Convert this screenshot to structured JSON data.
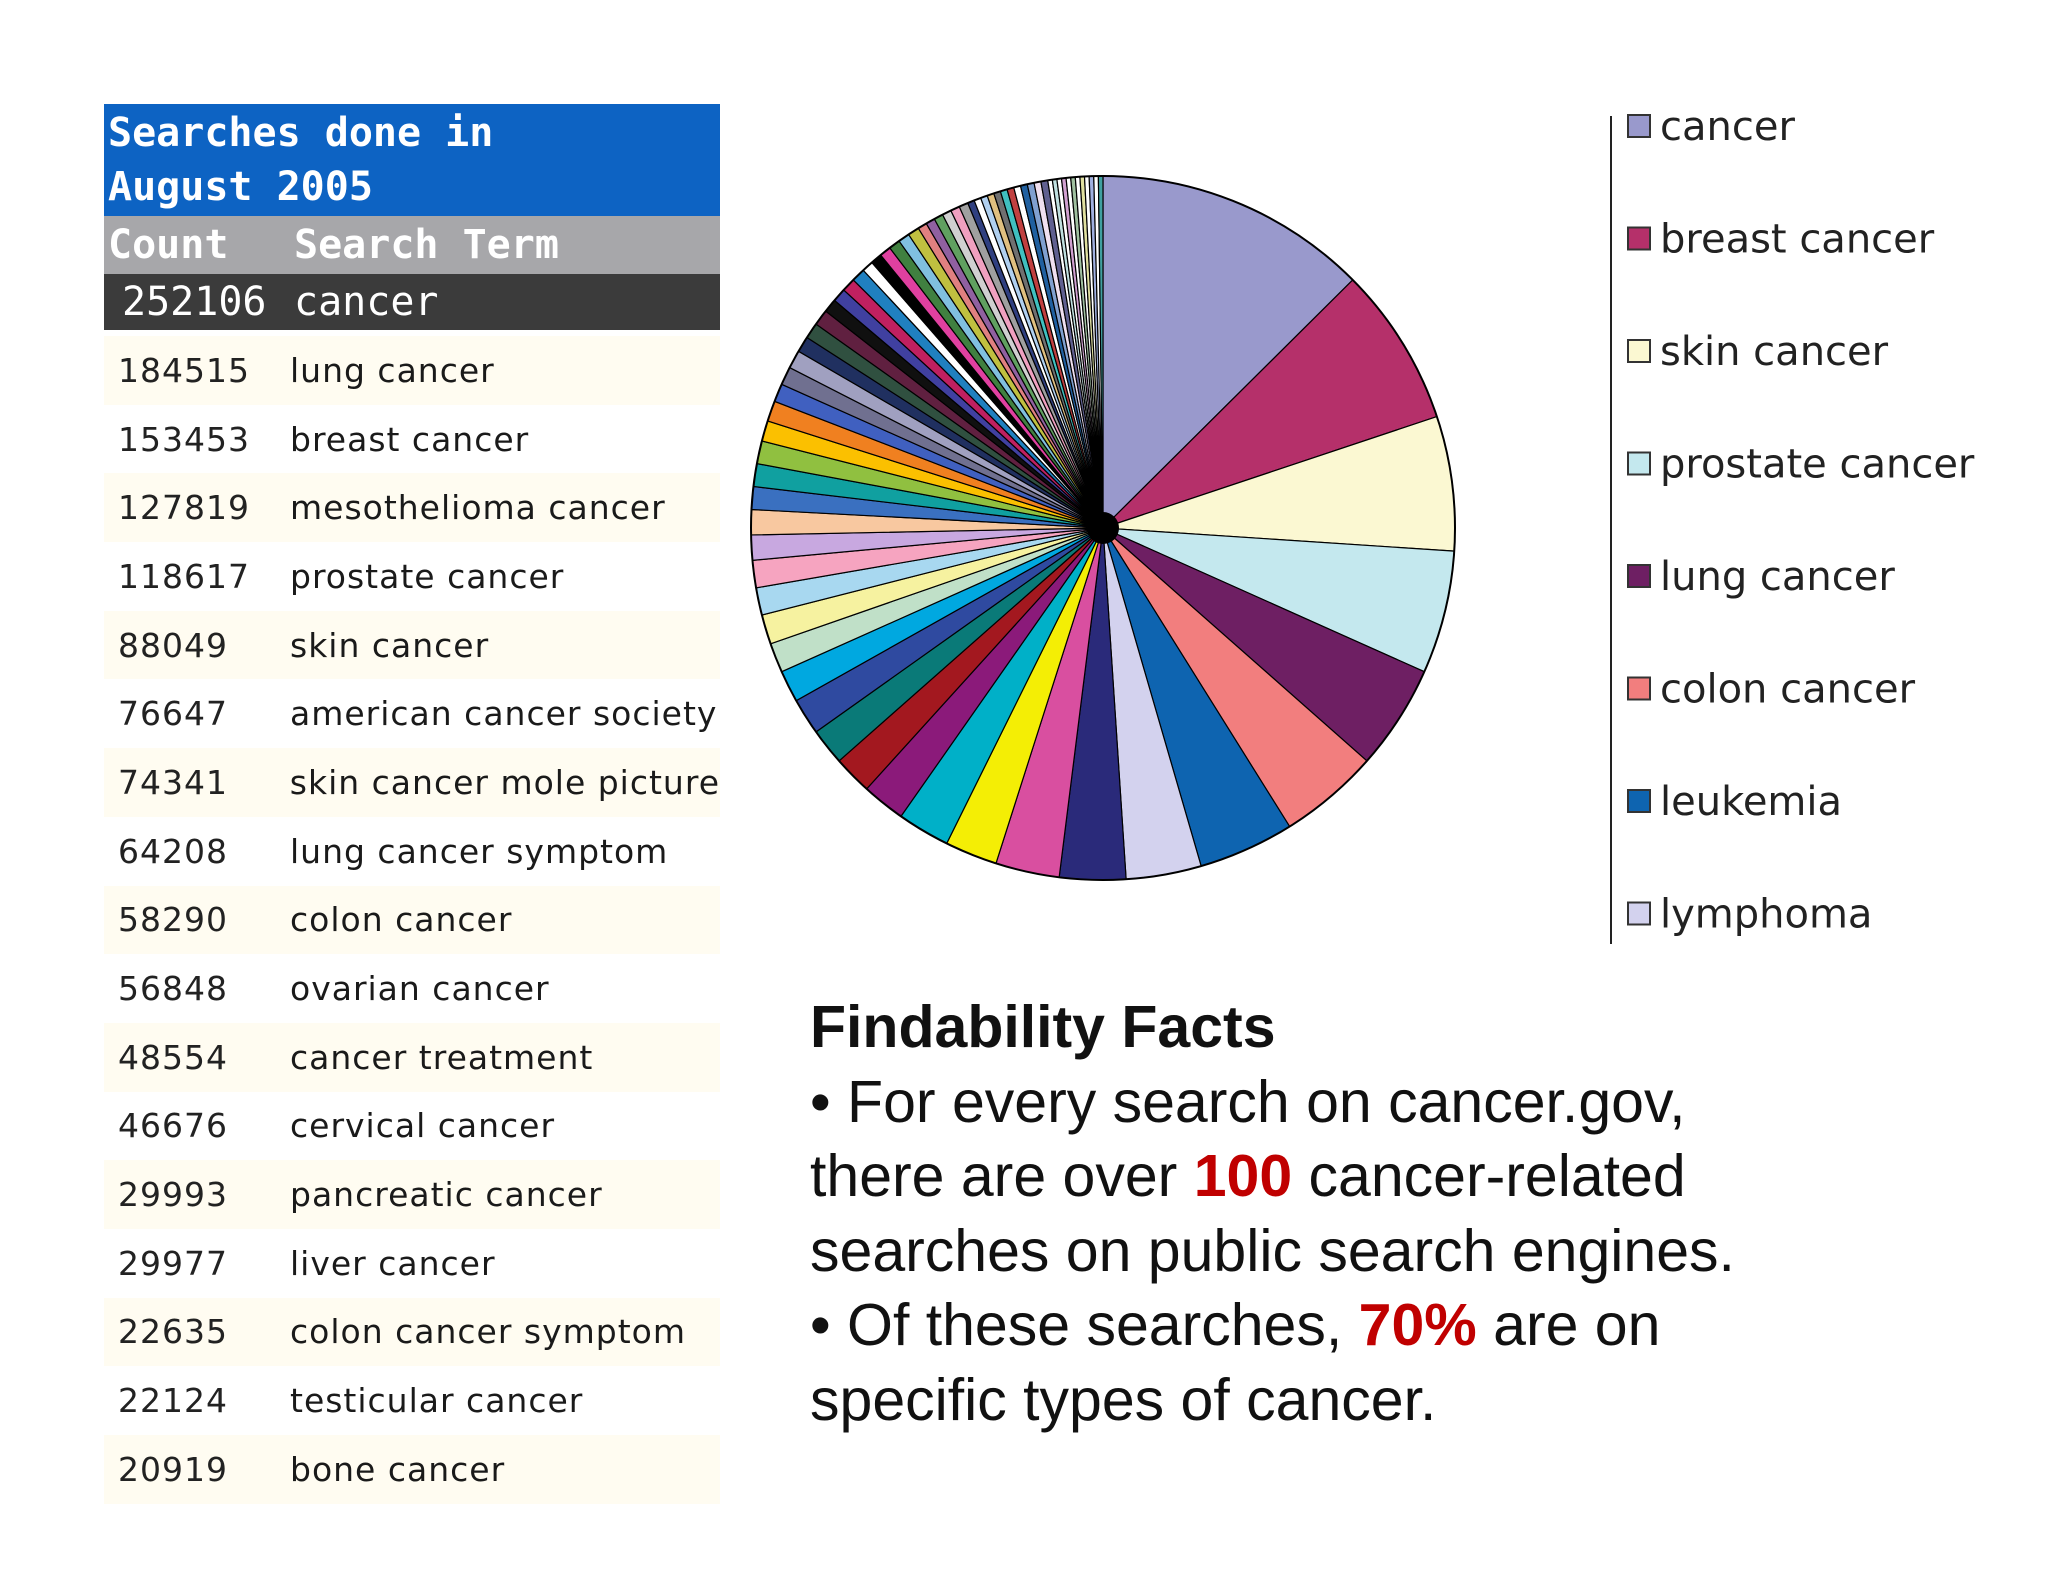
{
  "table": {
    "title_line1": "Searches done in",
    "title_line2": "August 2005",
    "header_count": "Count",
    "header_term": "Search Term",
    "top_row": {
      "count": "252106",
      "term": "cancer"
    },
    "rows": [
      {
        "count": "184515",
        "term": "lung cancer"
      },
      {
        "count": "153453",
        "term": "breast cancer"
      },
      {
        "count": "127819",
        "term": "mesothelioma cancer"
      },
      {
        "count": "118617",
        "term": "prostate cancer"
      },
      {
        "count": "88049",
        "term": "skin cancer"
      },
      {
        "count": "76647",
        "term": "american cancer society"
      },
      {
        "count": "74341",
        "term": "skin cancer mole picture"
      },
      {
        "count": "64208",
        "term": "lung cancer symptom"
      },
      {
        "count": "58290",
        "term": "colon cancer"
      },
      {
        "count": "56848",
        "term": "ovarian cancer"
      },
      {
        "count": "48554",
        "term": "cancer treatment"
      },
      {
        "count": "46676",
        "term": "cervical cancer"
      },
      {
        "count": "29993",
        "term": "pancreatic cancer"
      },
      {
        "count": "29977",
        "term": "liver cancer"
      },
      {
        "count": "22635",
        "term": "colon cancer symptom"
      },
      {
        "count": "22124",
        "term": "testicular cancer"
      },
      {
        "count": "20919",
        "term": "bone cancer"
      }
    ]
  },
  "chart_data": {
    "type": "pie",
    "title": "",
    "legend_position": "right",
    "legend": [
      {
        "label": "cancer",
        "color": "#9999cc"
      },
      {
        "label": "breast cancer",
        "color": "#b5306a"
      },
      {
        "label": "skin cancer",
        "color": "#fbf8d2"
      },
      {
        "label": "prostate cancer",
        "color": "#c4e8ee"
      },
      {
        "label": "lung cancer",
        "color": "#6e1f63"
      },
      {
        "label": "colon cancer",
        "color": "#f27e7e"
      },
      {
        "label": "leukemia",
        "color": "#0e64b0"
      },
      {
        "label": "lymphoma",
        "color": "#d3d2ee"
      }
    ],
    "slices": [
      {
        "label": "cancer",
        "value": 12.0,
        "color": "#9999cc"
      },
      {
        "label": "breast cancer",
        "value": 7.0,
        "color": "#b5306a"
      },
      {
        "label": "skin cancer",
        "value": 5.9,
        "color": "#fbf8d2"
      },
      {
        "label": "prostate cancer",
        "value": 5.4,
        "color": "#c4e8ee"
      },
      {
        "label": "lung cancer",
        "value": 4.6,
        "color": "#6e1f63"
      },
      {
        "label": "colon cancer",
        "value": 4.4,
        "color": "#f27e7e"
      },
      {
        "label": "leukemia",
        "value": 4.2,
        "color": "#0e64b0"
      },
      {
        "label": "lymphoma",
        "value": 3.3,
        "color": "#d3d2ee"
      },
      {
        "label": "",
        "value": 2.9,
        "color": "#2a2a7a"
      },
      {
        "label": "",
        "value": 2.8,
        "color": "#d94fa0"
      },
      {
        "label": "",
        "value": 2.3,
        "color": "#f4ee05"
      },
      {
        "label": "",
        "value": 2.3,
        "color": "#00b0c8"
      },
      {
        "label": "",
        "value": 1.9,
        "color": "#8b1a7a"
      },
      {
        "label": "",
        "value": 1.7,
        "color": "#a3181f"
      },
      {
        "label": "",
        "value": 1.6,
        "color": "#0a7a78"
      },
      {
        "label": "",
        "value": 1.6,
        "color": "#2f4aa0"
      },
      {
        "label": "",
        "value": 1.4,
        "color": "#00a8e0"
      },
      {
        "label": "",
        "value": 1.3,
        "color": "#c0e0c8"
      },
      {
        "label": "",
        "value": 1.3,
        "color": "#f6f2a0"
      },
      {
        "label": "",
        "value": 1.2,
        "color": "#a8d8f0"
      },
      {
        "label": "",
        "value": 1.2,
        "color": "#f6a4c0"
      },
      {
        "label": "",
        "value": 1.1,
        "color": "#c8a8e0"
      },
      {
        "label": "",
        "value": 1.1,
        "color": "#f8c8a0"
      },
      {
        "label": "",
        "value": 1.0,
        "color": "#3a70c0"
      },
      {
        "label": "",
        "value": 1.0,
        "color": "#10a0a0"
      },
      {
        "label": "",
        "value": 1.0,
        "color": "#90c040"
      },
      {
        "label": "",
        "value": 0.9,
        "color": "#fbc000"
      },
      {
        "label": "",
        "value": 0.9,
        "color": "#f08020"
      },
      {
        "label": "",
        "value": 0.8,
        "color": "#4060c0"
      },
      {
        "label": "",
        "value": 0.8,
        "color": "#707090"
      },
      {
        "label": "",
        "value": 0.8,
        "color": "#a0a0c0"
      },
      {
        "label": "",
        "value": 0.7,
        "color": "#203060"
      },
      {
        "label": "",
        "value": 0.7,
        "color": "#305040"
      },
      {
        "label": "",
        "value": 0.7,
        "color": "#602040"
      },
      {
        "label": "",
        "value": 0.6,
        "color": "#101010"
      },
      {
        "label": "",
        "value": 0.6,
        "color": "#4040a0"
      },
      {
        "label": "",
        "value": 0.6,
        "color": "#c02060"
      },
      {
        "label": "",
        "value": 0.6,
        "color": "#2080c0"
      },
      {
        "label": "",
        "value": 0.5,
        "color": "#ffffff"
      },
      {
        "label": "",
        "value": 0.5,
        "color": "#000000"
      },
      {
        "label": "",
        "value": 0.5,
        "color": "#e040a0"
      },
      {
        "label": "",
        "value": 0.5,
        "color": "#408040"
      },
      {
        "label": "",
        "value": 0.5,
        "color": "#80c0e0"
      },
      {
        "label": "",
        "value": 0.5,
        "color": "#c0c040"
      },
      {
        "label": "",
        "value": 0.4,
        "color": "#e08080"
      },
      {
        "label": "",
        "value": 0.4,
        "color": "#9060a0"
      },
      {
        "label": "",
        "value": 0.4,
        "color": "#60a060"
      },
      {
        "label": "",
        "value": 0.4,
        "color": "#d0d0d0"
      },
      {
        "label": "",
        "value": 0.4,
        "color": "#f0a0c0"
      },
      {
        "label": "",
        "value": 0.4,
        "color": "#a0a0a0"
      },
      {
        "label": "",
        "value": 0.3,
        "color": "#304080"
      },
      {
        "label": "",
        "value": 0.3,
        "color": "#ffffff"
      },
      {
        "label": "",
        "value": 0.3,
        "color": "#b0d0f0"
      },
      {
        "label": "",
        "value": 0.3,
        "color": "#e0c080"
      },
      {
        "label": "",
        "value": 0.3,
        "color": "#707070"
      },
      {
        "label": "",
        "value": 0.3,
        "color": "#40c0c0"
      },
      {
        "label": "",
        "value": 0.3,
        "color": "#c04040"
      },
      {
        "label": "",
        "value": 0.3,
        "color": "#ffffff"
      },
      {
        "label": "",
        "value": 0.3,
        "color": "#2060a0"
      },
      {
        "label": "",
        "value": 0.3,
        "color": "#80a0d0"
      },
      {
        "label": "",
        "value": 0.3,
        "color": "#f0e0f0"
      },
      {
        "label": "",
        "value": 0.3,
        "color": "#606090"
      },
      {
        "label": "",
        "value": 0.2,
        "color": "#ffffff"
      },
      {
        "label": "",
        "value": 0.2,
        "color": "#c0e0e0"
      },
      {
        "label": "",
        "value": 0.2,
        "color": "#ffffff"
      },
      {
        "label": "",
        "value": 0.2,
        "color": "#d0a0d0"
      },
      {
        "label": "",
        "value": 0.2,
        "color": "#ffffff"
      },
      {
        "label": "",
        "value": 0.2,
        "color": "#a0c0a0"
      },
      {
        "label": "",
        "value": 0.2,
        "color": "#ffffff"
      },
      {
        "label": "",
        "value": 0.2,
        "color": "#e0e0a0"
      },
      {
        "label": "",
        "value": 0.2,
        "color": "#ffffff"
      },
      {
        "label": "",
        "value": 0.2,
        "color": "#a0b0e0"
      },
      {
        "label": "",
        "value": 0.2,
        "color": "#ffffff"
      },
      {
        "label": "",
        "value": 0.2,
        "color": "#40a0a0"
      }
    ]
  },
  "facts": {
    "title": "Findability Facts",
    "line1": "• For every search on cancer.gov,",
    "line2_pre": "there are over ",
    "line2_num": "100",
    "line2_post": " cancer-related",
    "line3": "searches on public search engines.",
    "line4_pre": "• Of these searches, ",
    "line4_num": "70%",
    "line4_post": " are on",
    "line5": "specific types of cancer."
  }
}
